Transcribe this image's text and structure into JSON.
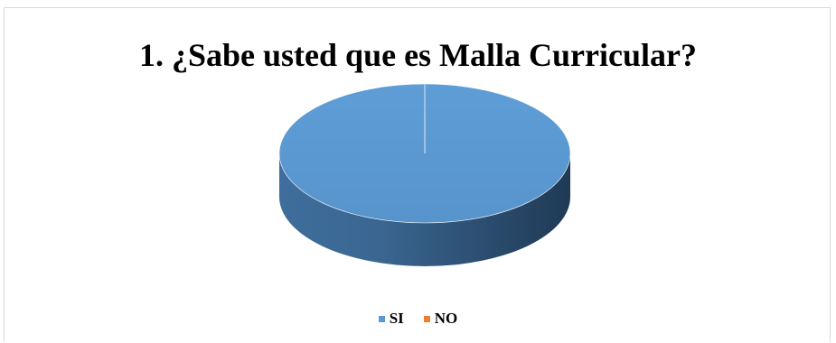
{
  "chart_data": {
    "type": "pie",
    "title": "1. ¿Sabe usted que es Malla Curricular?",
    "categories": [
      "SI",
      "NO"
    ],
    "values": [
      100,
      0
    ],
    "colors": [
      "#5b9bd5",
      "#ed7d31"
    ],
    "style": "3d",
    "legend_position": "bottom"
  },
  "legend": [
    {
      "label": "SI",
      "color": "#5b9bd5"
    },
    {
      "label": "NO",
      "color": "#ed7d31"
    }
  ]
}
